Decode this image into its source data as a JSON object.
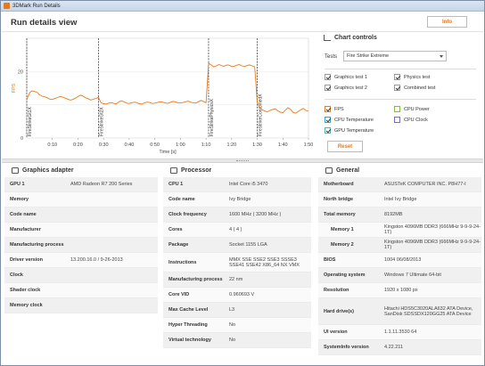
{
  "window": {
    "title": "3DMark Run Details"
  },
  "header": {
    "title": "Run details view",
    "info_label": "Info"
  },
  "chart_data": {
    "type": "line",
    "ylabel": "FPS",
    "xlabel": "Time [s]",
    "yticks": [
      "20",
      "0"
    ],
    "ylim": [
      0,
      30
    ],
    "xlim": [
      0,
      110
    ],
    "xticks": [
      "0:10",
      "0:20",
      "0:30",
      "0:40",
      "0:50",
      "1:00",
      "1:10",
      "1:20",
      "1:30",
      "1:40",
      "1:50"
    ],
    "xtick_values": [
      10,
      20,
      30,
      40,
      50,
      60,
      70,
      80,
      90,
      100,
      110
    ],
    "markers": [
      {
        "label": "FireStrikeGt1X",
        "x": 0
      },
      {
        "label": "FireStrikeGt2X",
        "x": 28
      },
      {
        "label": "FireStrikePhysicsX",
        "x": 71
      },
      {
        "label": "FireStrikeCombinedX",
        "x": 90
      }
    ],
    "series": [
      {
        "name": "FPS",
        "x": [
          0,
          1,
          2,
          3,
          4,
          5,
          6,
          7,
          8,
          9,
          10,
          11,
          12,
          13,
          14,
          15,
          16,
          17,
          18,
          19,
          20,
          21,
          22,
          23,
          24,
          25,
          26,
          27,
          28,
          29,
          30,
          31,
          32,
          33,
          34,
          35,
          36,
          37,
          38,
          39,
          40,
          41,
          42,
          43,
          44,
          45,
          46,
          47,
          48,
          49,
          50,
          51,
          52,
          53,
          54,
          55,
          56,
          57,
          58,
          59,
          60,
          61,
          62,
          63,
          64,
          65,
          66,
          67,
          68,
          69,
          70,
          71,
          72,
          73,
          74,
          75,
          76,
          77,
          78,
          79,
          80,
          81,
          82,
          83,
          84,
          85,
          86,
          87,
          88,
          89,
          90,
          91,
          92,
          93,
          94,
          95,
          96,
          97,
          98,
          99,
          100,
          101,
          102,
          103,
          104,
          105,
          106,
          107,
          108,
          109,
          110
        ],
        "y": [
          11.5,
          13.5,
          14.2,
          14,
          13.8,
          13,
          12.6,
          12.4,
          12.1,
          11.7,
          11.6,
          11.9,
          12.2,
          12.5,
          12.3,
          12.0,
          11.7,
          11.4,
          11.6,
          12.0,
          12.5,
          12.9,
          12.6,
          12.1,
          11.8,
          11.4,
          11.7,
          11.9,
          12.3,
          10.6,
          10.3,
          10.2,
          10.5,
          10.7,
          10.4,
          10.3,
          10.9,
          11.2,
          10.9,
          10.5,
          10.4,
          10.6,
          10.8,
          10.6,
          10.3,
          10.2,
          10.6,
          10.8,
          10.7,
          10.4,
          10.5,
          10.7,
          10.9,
          10.8,
          10.6,
          10.4,
          10.7,
          11.0,
          10.9,
          10.6,
          10.5,
          10.7,
          10.9,
          11.1,
          10.8,
          10.6,
          10.5,
          10.9,
          11.3,
          11.0,
          10.6,
          22.5,
          22.0,
          21.4,
          21.7,
          22.1,
          21.8,
          21.6,
          22.0,
          21.9,
          21.5,
          21.6,
          21.9,
          22.1,
          21.7,
          21.5,
          21.8,
          22.0,
          21.7,
          21.4,
          10.8,
          9.0,
          8.5,
          8.1,
          7.9,
          8.3,
          8.6,
          8.8,
          8.2,
          7.8,
          7.6,
          8.4,
          9.1,
          8.6,
          7.7,
          7.5,
          8.0,
          8.5,
          8.9,
          8.3,
          8.1
        ]
      }
    ]
  },
  "controls": {
    "title": "Chart controls",
    "tests_label": "Tests",
    "tests_value": "Fire Strike Extreme",
    "checks_tests": [
      {
        "label": "Graphics test 1",
        "checked": true
      },
      {
        "label": "Physics test",
        "checked": true
      },
      {
        "label": "Graphics test 2",
        "checked": true
      },
      {
        "label": "Combined test",
        "checked": true
      }
    ],
    "checks_metrics": [
      {
        "label": "FPS",
        "checked": true,
        "color": "#e87a1d"
      },
      {
        "label": "CPU Power",
        "checked": false,
        "color": "#7bbf3a"
      },
      {
        "label": "CPU Temperature",
        "checked": true,
        "color": "#29a9e0"
      },
      {
        "label": "CPU Clock",
        "checked": false,
        "color": "#6f6cc8"
      },
      {
        "label": "GPU Temperature",
        "checked": true,
        "color": "#3ebcb0"
      }
    ],
    "reset_label": "Reset"
  },
  "graphics": {
    "title": "Graphics adapter",
    "rows": [
      {
        "k": "GPU 1",
        "v": "AMD Radeon R7 200 Series"
      },
      {
        "k": "Memory",
        "v": ""
      },
      {
        "k": "Code name",
        "v": ""
      },
      {
        "k": "Manufacturer",
        "v": ""
      },
      {
        "k": "Manufacturing process",
        "v": ""
      },
      {
        "k": "Driver version",
        "v": "13.200.16.0 / 9-26-2013"
      },
      {
        "k": "Clock",
        "v": ""
      },
      {
        "k": "Shader clock",
        "v": ""
      },
      {
        "k": "Memory clock",
        "v": ""
      }
    ]
  },
  "processor": {
    "title": "Processor",
    "rows": [
      {
        "k": "CPU 1",
        "v": "Intel Core i5 3470"
      },
      {
        "k": "Code name",
        "v": "Ivy Bridge"
      },
      {
        "k": "Clock frequency",
        "v": "1600 MHz ( 3200 MHz )"
      },
      {
        "k": "Cores",
        "v": "4 ( 4 )"
      },
      {
        "k": "Package",
        "v": "Socket 1155 LGA"
      },
      {
        "k": "Instructions",
        "v": "MMX SSE SSE2 SSE3 SSSE3 SSE41 SSE42 X86_64 NX VMX"
      },
      {
        "k": "Manufacturing process",
        "v": "22 nm"
      },
      {
        "k": "Core VID",
        "v": "0.960693 V"
      },
      {
        "k": "Max Cache Level",
        "v": "L3"
      },
      {
        "k": "Hyper Threading",
        "v": "No"
      },
      {
        "k": "Virtual technology",
        "v": "No"
      }
    ]
  },
  "general": {
    "title": "General",
    "rows": [
      {
        "k": "Motherboard",
        "v": "ASUSTeK COMPUTER INC. P8H77-I",
        "sub": false
      },
      {
        "k": "North bridge",
        "v": "Intel Ivy Bridge",
        "sub": false
      },
      {
        "k": "Total memory",
        "v": "8192MB",
        "sub": false
      },
      {
        "k": "Memory 1",
        "v": "Kingston 4096MB DDR3 (666MHz 9-9-9-24-1T)",
        "sub": true
      },
      {
        "k": "Memory 2",
        "v": "Kingston 4096MB DDR3 (666MHz 9-9-9-24-1T)",
        "sub": true
      },
      {
        "k": "BIOS",
        "v": "1004 06/08/2013",
        "sub": false
      },
      {
        "k": "Operating system",
        "v": "Windows 7 Ultimate 64-bit",
        "sub": false
      },
      {
        "k": "Resolution",
        "v": "1920 x 1080 px",
        "sub": false
      },
      {
        "k": "Hard drive(s)",
        "v": "Hitachi HDS5C3020ALA632 ATA Device, SanDisk SDSSDX120GG25 ATA Device",
        "sub": false
      },
      {
        "k": "UI version",
        "v": "1.1.11.3530 64",
        "sub": false
      },
      {
        "k": "SystemInfo version",
        "v": "4.22.211",
        "sub": false
      }
    ]
  }
}
